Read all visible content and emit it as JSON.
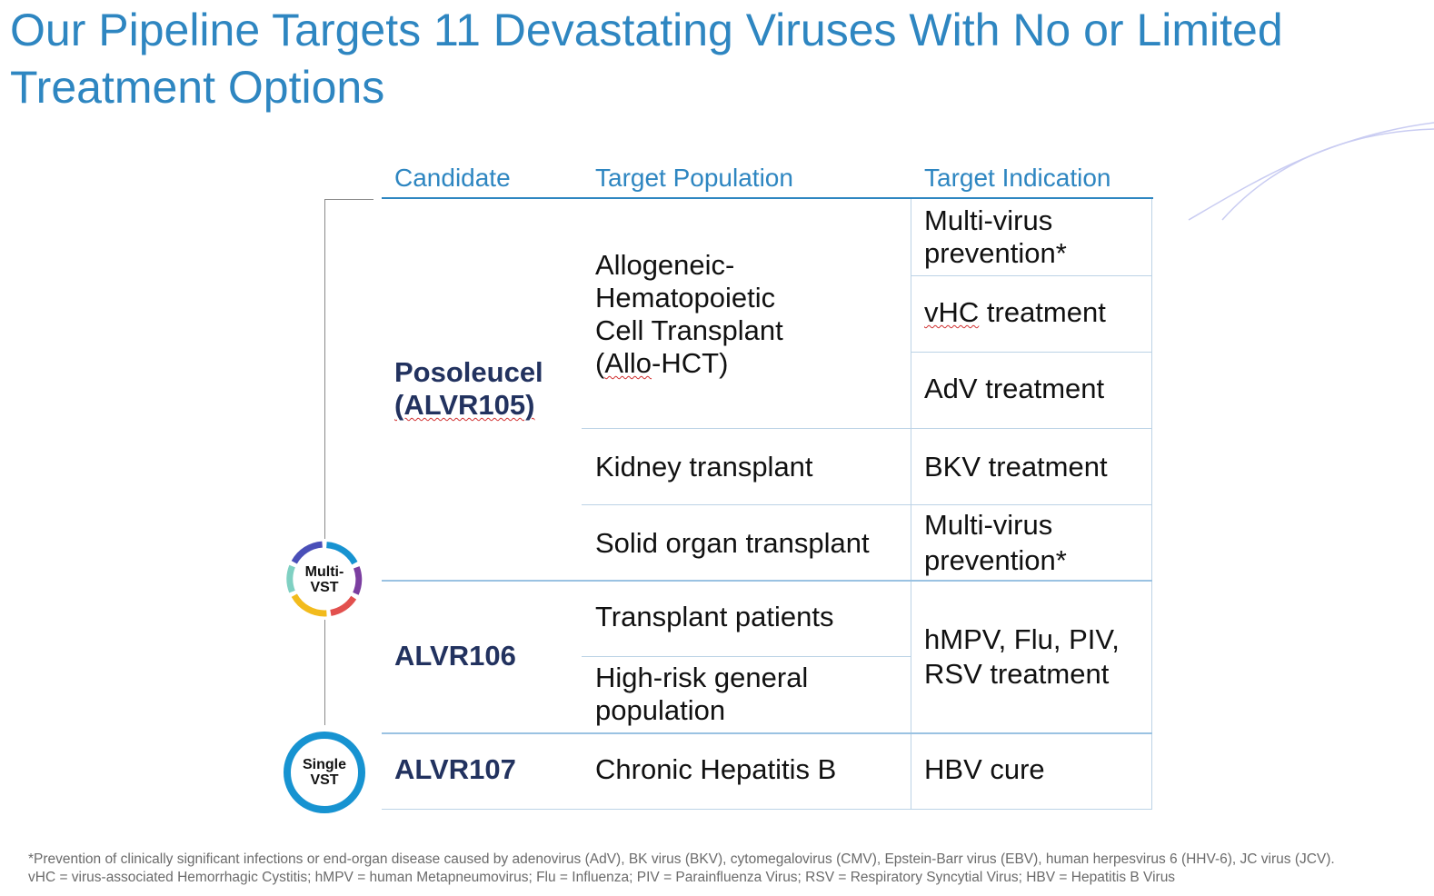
{
  "title": "Our Pipeline Targets 11 Devastating Viruses With No or Limited Treatment Options",
  "headers": {
    "candidate": "Candidate",
    "population": "Target Population",
    "indication": "Target Indication"
  },
  "candidates": {
    "posoleucel_name": "Posoleucel",
    "posoleucel_code": "(ALVR105)",
    "alvr106": "ALVR106",
    "alvr107": "ALVR107"
  },
  "populations": {
    "allo_line1": "Allogeneic-",
    "allo_line2": "Hematopoietic",
    "allo_line3": "Cell Transplant",
    "allo_line4_pre": "(",
    "allo_line4_wavy": "Allo",
    "allo_line4_post": "-HCT)",
    "kidney": "Kidney transplant",
    "solid_organ": "Solid organ transplant",
    "transplant_patients": "Transplant patients",
    "high_risk_line1": "High-risk general",
    "high_risk_line2": "population",
    "hepatitis": "Chronic Hepatitis B"
  },
  "indications": {
    "multi_virus_1a": "Multi-virus",
    "multi_virus_1b": "prevention*",
    "vhc_abbr": "vHC",
    "vhc_rest": " treatment",
    "adv": "AdV treatment",
    "bkv": "BKV treatment",
    "multi_virus_2a": "Multi-virus",
    "multi_virus_2b": "prevention*",
    "hmpv_line1": "hMPV, Flu, PIV,",
    "hmpv_line2": "RSV treatment",
    "hbv": "HBV cure"
  },
  "badges": {
    "multi_line1": "Multi-",
    "multi_line2": "VST",
    "single_line1": "Single",
    "single_line2": "VST"
  },
  "colors": {
    "title_blue": "#2e86c1",
    "candidate_navy": "#22325f",
    "ring_blue": "#1793d1",
    "ring_purple": "#7b3ea0",
    "ring_red": "#e2504e",
    "ring_yellow": "#f2bb1d",
    "ring_teal": "#7fd0c2",
    "ring_indigo": "#4a4fb8"
  },
  "footnotes": {
    "line1": "*Prevention of clinically significant infections or end-organ disease caused by adenovirus (AdV), BK virus (BKV), cytomegalovirus (CMV), Epstein-Barr virus (EBV), human herpesvirus 6 (HHV-6), JC virus (JCV).",
    "line2": "vHC = virus-associated Hemorrhagic Cystitis; hMPV = human Metapneumovirus; Flu = Influenza; PIV = Parainfluenza Virus; RSV = Respiratory Syncytial Virus; HBV = Hepatitis B Virus"
  }
}
